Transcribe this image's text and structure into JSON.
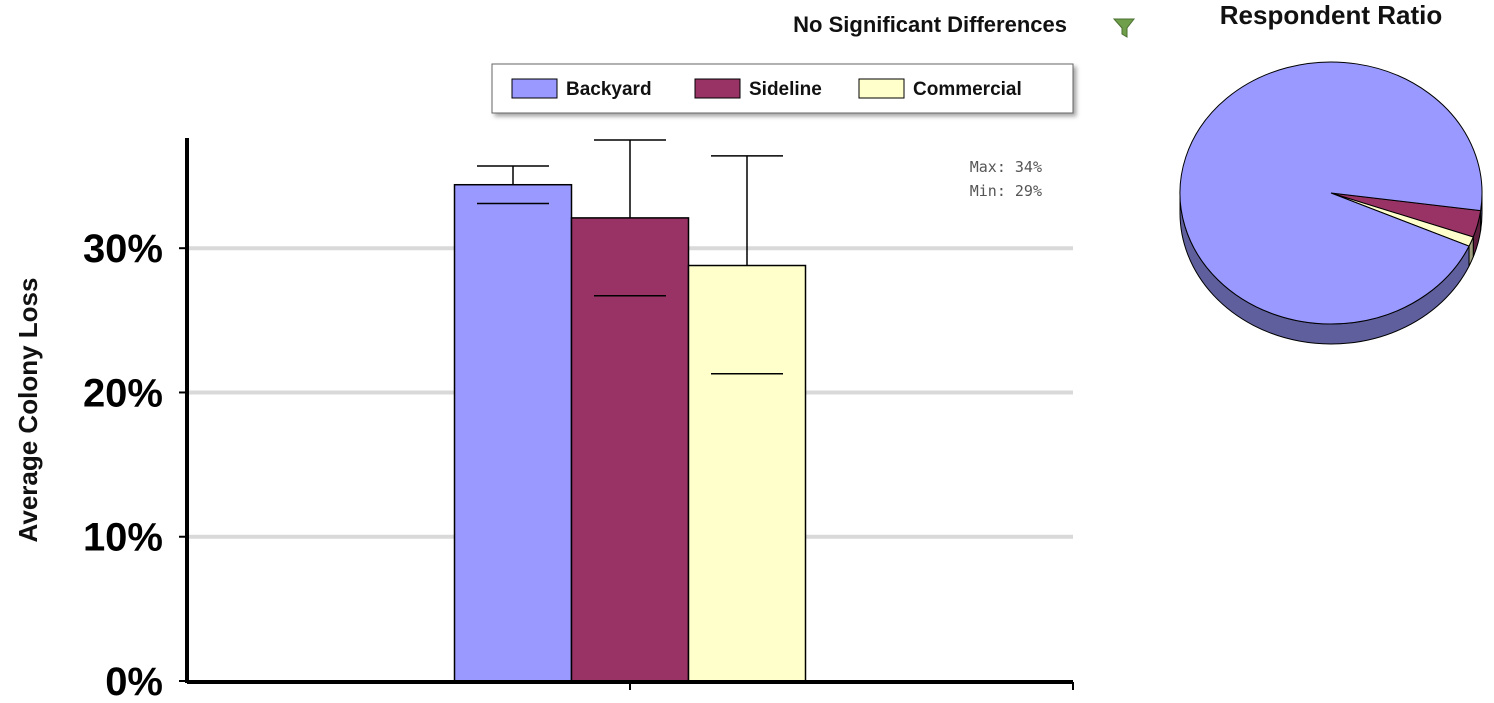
{
  "bar_chart": {
    "subtitle": "No Significant Differences",
    "filter_icon": "funnel-icon",
    "stats": {
      "max": "Max: 34%",
      "min": "Min: 29%"
    },
    "legend": [
      "Backyard",
      "Sideline",
      "Commercial"
    ],
    "y_ticks": [
      "0%",
      "10%",
      "20%",
      "30%"
    ]
  },
  "pie_chart": {
    "title": "Respondent Ratio"
  },
  "chart_data": [
    {
      "type": "bar",
      "title": "",
      "subtitle": "No Significant Differences",
      "xlabel": "",
      "ylabel": "Average Colony Loss",
      "ylim": [
        0,
        0.375
      ],
      "y_ticks": [
        0,
        0.1,
        0.2,
        0.3
      ],
      "y_tick_labels": [
        "0%",
        "10%",
        "20%",
        "30%"
      ],
      "grid": true,
      "legend_position": "top",
      "categories": [
        ""
      ],
      "series": [
        {
          "name": "Backyard",
          "color": "#9999ff",
          "values": [
            0.344
          ],
          "error_high": [
            0.357
          ],
          "error_low": [
            0.331
          ]
        },
        {
          "name": "Sideline",
          "color": "#993366",
          "values": [
            0.321
          ],
          "error_high": [
            0.375
          ],
          "error_low": [
            0.267
          ]
        },
        {
          "name": "Commercial",
          "color": "#ffffcc",
          "values": [
            0.288
          ],
          "error_high": [
            0.364
          ],
          "error_low": [
            0.213
          ]
        }
      ]
    },
    {
      "type": "pie",
      "title": "Respondent Ratio",
      "slices": [
        {
          "name": "Backyard",
          "value": 0.955,
          "color": "#9999ff"
        },
        {
          "name": "Sideline",
          "value": 0.033,
          "color": "#993366"
        },
        {
          "name": "Commercial",
          "value": 0.012,
          "color": "#ffffcc"
        }
      ]
    }
  ]
}
